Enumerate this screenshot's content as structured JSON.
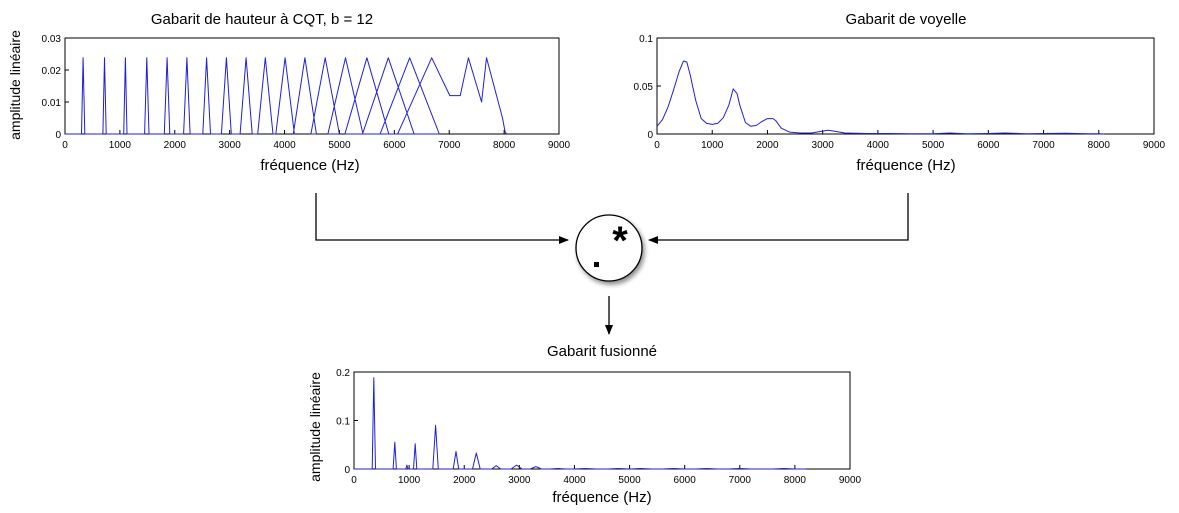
{
  "chart_data": [
    {
      "id": "pitch",
      "type": "line",
      "title": "Gabarit de hauteur à CQT, b = 12",
      "xlabel": "fréquence (Hz)",
      "ylabel": "amplitude linéaire",
      "xlim": [
        0,
        9000
      ],
      "ylim": [
        0,
        0.03
      ],
      "xticks": [
        "0",
        "1000",
        "2000",
        "3000",
        "4000",
        "5000",
        "6000",
        "7000",
        "8000",
        "9000"
      ],
      "yticks": [
        "0",
        "0.01",
        "0.02",
        "0.03"
      ],
      "series_color": "#1f1fd9",
      "x": [
        0,
        300,
        330,
        360,
        690,
        720,
        750,
        1070,
        1100,
        1130,
        1450,
        1490,
        1530,
        1810,
        1860,
        1910,
        2160,
        2220,
        2280,
        2510,
        2580,
        2650,
        2850,
        2940,
        3030,
        3190,
        3300,
        3410,
        3510,
        3650,
        3790,
        3840,
        4010,
        4180,
        4160,
        4370,
        4580,
        4480,
        4740,
        5000,
        4790,
        5110,
        5430,
        5100,
        5500,
        5900,
        5420,
        5890,
        6360,
        5740,
        6280,
        6820,
        6060,
        6680,
        7010,
        7200,
        7350,
        7590,
        7680,
        7970,
        8020,
        8050
      ],
      "y": [
        0,
        0,
        0.0238,
        0,
        0,
        0.0238,
        0,
        0,
        0.0238,
        0,
        0,
        0.0238,
        0,
        0,
        0.0238,
        0,
        0,
        0.0238,
        0,
        0,
        0.0238,
        0,
        0,
        0.0238,
        0,
        0,
        0.0238,
        0,
        0,
        0.0238,
        0,
        0,
        0.0238,
        0,
        0,
        0.0238,
        0,
        0,
        0.0238,
        0,
        0,
        0.0238,
        0,
        0,
        0.0238,
        0,
        0,
        0.0238,
        0,
        0,
        0.0238,
        0,
        0,
        0.0238,
        0.012,
        0.012,
        0.0238,
        0.01,
        0.0238,
        0.005,
        0.0005,
        0
      ]
    },
    {
      "id": "vowel",
      "type": "line",
      "title": "Gabarit de voyelle",
      "xlabel": "fréquence (Hz)",
      "ylabel": "",
      "xlim": [
        0,
        9000
      ],
      "ylim": [
        0,
        0.1
      ],
      "xticks": [
        "0",
        "1000",
        "2000",
        "3000",
        "4000",
        "5000",
        "6000",
        "7000",
        "8000",
        "9000"
      ],
      "yticks": [
        "0",
        "0.05",
        "0.1"
      ],
      "series_color": "#1f1fd9",
      "x": [
        0,
        100,
        200,
        300,
        400,
        480,
        540,
        600,
        700,
        800,
        900,
        1000,
        1100,
        1200,
        1300,
        1380,
        1450,
        1500,
        1600,
        1700,
        1800,
        1900,
        2000,
        2100,
        2150,
        2250,
        2400,
        2600,
        2800,
        3000,
        3100,
        3200,
        3400,
        3800,
        4200,
        4600,
        5000,
        5300,
        5600,
        6000,
        6300,
        6700,
        7000,
        7400,
        7800,
        8000,
        8100
      ],
      "y": [
        0.008,
        0.015,
        0.028,
        0.046,
        0.065,
        0.076,
        0.075,
        0.062,
        0.035,
        0.016,
        0.011,
        0.01,
        0.011,
        0.017,
        0.03,
        0.047,
        0.042,
        0.03,
        0.012,
        0.008,
        0.009,
        0.013,
        0.016,
        0.016,
        0.014,
        0.006,
        0.002,
        0.001,
        0.001,
        0.003,
        0.004,
        0.003,
        0.001,
        0.0005,
        0.0005,
        0.0003,
        0.0003,
        0.001,
        0.0003,
        0.0005,
        0.001,
        0.0003,
        0.0005,
        0.0008,
        0.0003,
        0.0002,
        0
      ]
    },
    {
      "id": "fused",
      "type": "line",
      "title": "Gabarit fusionné",
      "xlabel": "fréquence (Hz)",
      "ylabel": "amplitude linéaire",
      "xlim": [
        0,
        9000
      ],
      "ylim": [
        0,
        0.2
      ],
      "xticks": [
        "0",
        "1000",
        "2000",
        "3000",
        "4000",
        "5000",
        "6000",
        "7000",
        "8000",
        "9000"
      ],
      "yticks": [
        "0",
        "0.1",
        "0.2"
      ],
      "series_color": "#1f1fd9",
      "x": [
        0,
        330,
        360,
        390,
        710,
        740,
        770,
        940,
        960,
        980,
        1080,
        1110,
        1140,
        1430,
        1480,
        1530,
        1800,
        1850,
        1900,
        2150,
        2220,
        2290,
        2500,
        2580,
        2660,
        2850,
        2950,
        3050,
        3200,
        3300,
        3400,
        3550,
        3700,
        3850,
        4000,
        4200,
        4400,
        4600,
        4800,
        5000,
        5200,
        5400,
        5600,
        5800,
        6000,
        6200,
        6400,
        6600,
        6800,
        7000,
        7200,
        7400,
        7600,
        7800,
        8000,
        8200
      ],
      "y": [
        0,
        0,
        0.188,
        0,
        0,
        0.055,
        0,
        0,
        0.008,
        0,
        0,
        0.052,
        0,
        0,
        0.09,
        0,
        0,
        0.036,
        0,
        0,
        0.033,
        0,
        0,
        0.007,
        0,
        0,
        0.008,
        0,
        0,
        0.005,
        0,
        0,
        0.001,
        0,
        0,
        0.001,
        0,
        0,
        0.001,
        0,
        0.001,
        0,
        0,
        0.001,
        0,
        0,
        0.001,
        0,
        0,
        0.001,
        0,
        0,
        0,
        0.001,
        0,
        0
      ]
    }
  ],
  "operator": {
    "symbol": "*",
    "dot": "."
  }
}
